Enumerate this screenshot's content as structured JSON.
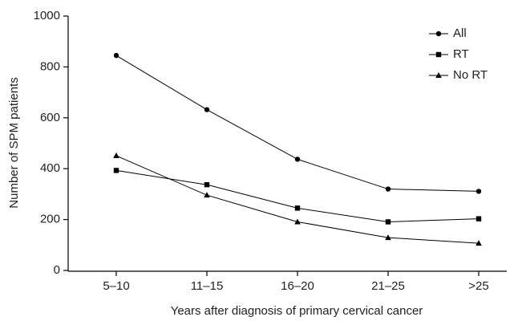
{
  "chart_data": {
    "type": "line",
    "x_label": "Years after diagnosis of primary cervical cancer",
    "y_label": "Number of SPM patients",
    "categories": [
      "5–10",
      "11–15",
      "16–20",
      "21–25",
      ">25"
    ],
    "series": [
      {
        "name": "All",
        "color": "#000000",
        "marker": "circle",
        "values": [
          845,
          632,
          437,
          320,
          311
        ]
      },
      {
        "name": "RT",
        "color": "#000000",
        "marker": "square",
        "values": [
          393,
          337,
          245,
          191,
          203
        ]
      },
      {
        "name": "No RT",
        "color": "#000000",
        "marker": "triangle",
        "values": [
          451,
          296,
          191,
          129,
          107
        ]
      }
    ],
    "ylim": [
      0,
      1000
    ],
    "yticks": [
      0,
      200,
      400,
      600,
      800,
      1000
    ],
    "legend": "upper right",
    "grid": false
  }
}
